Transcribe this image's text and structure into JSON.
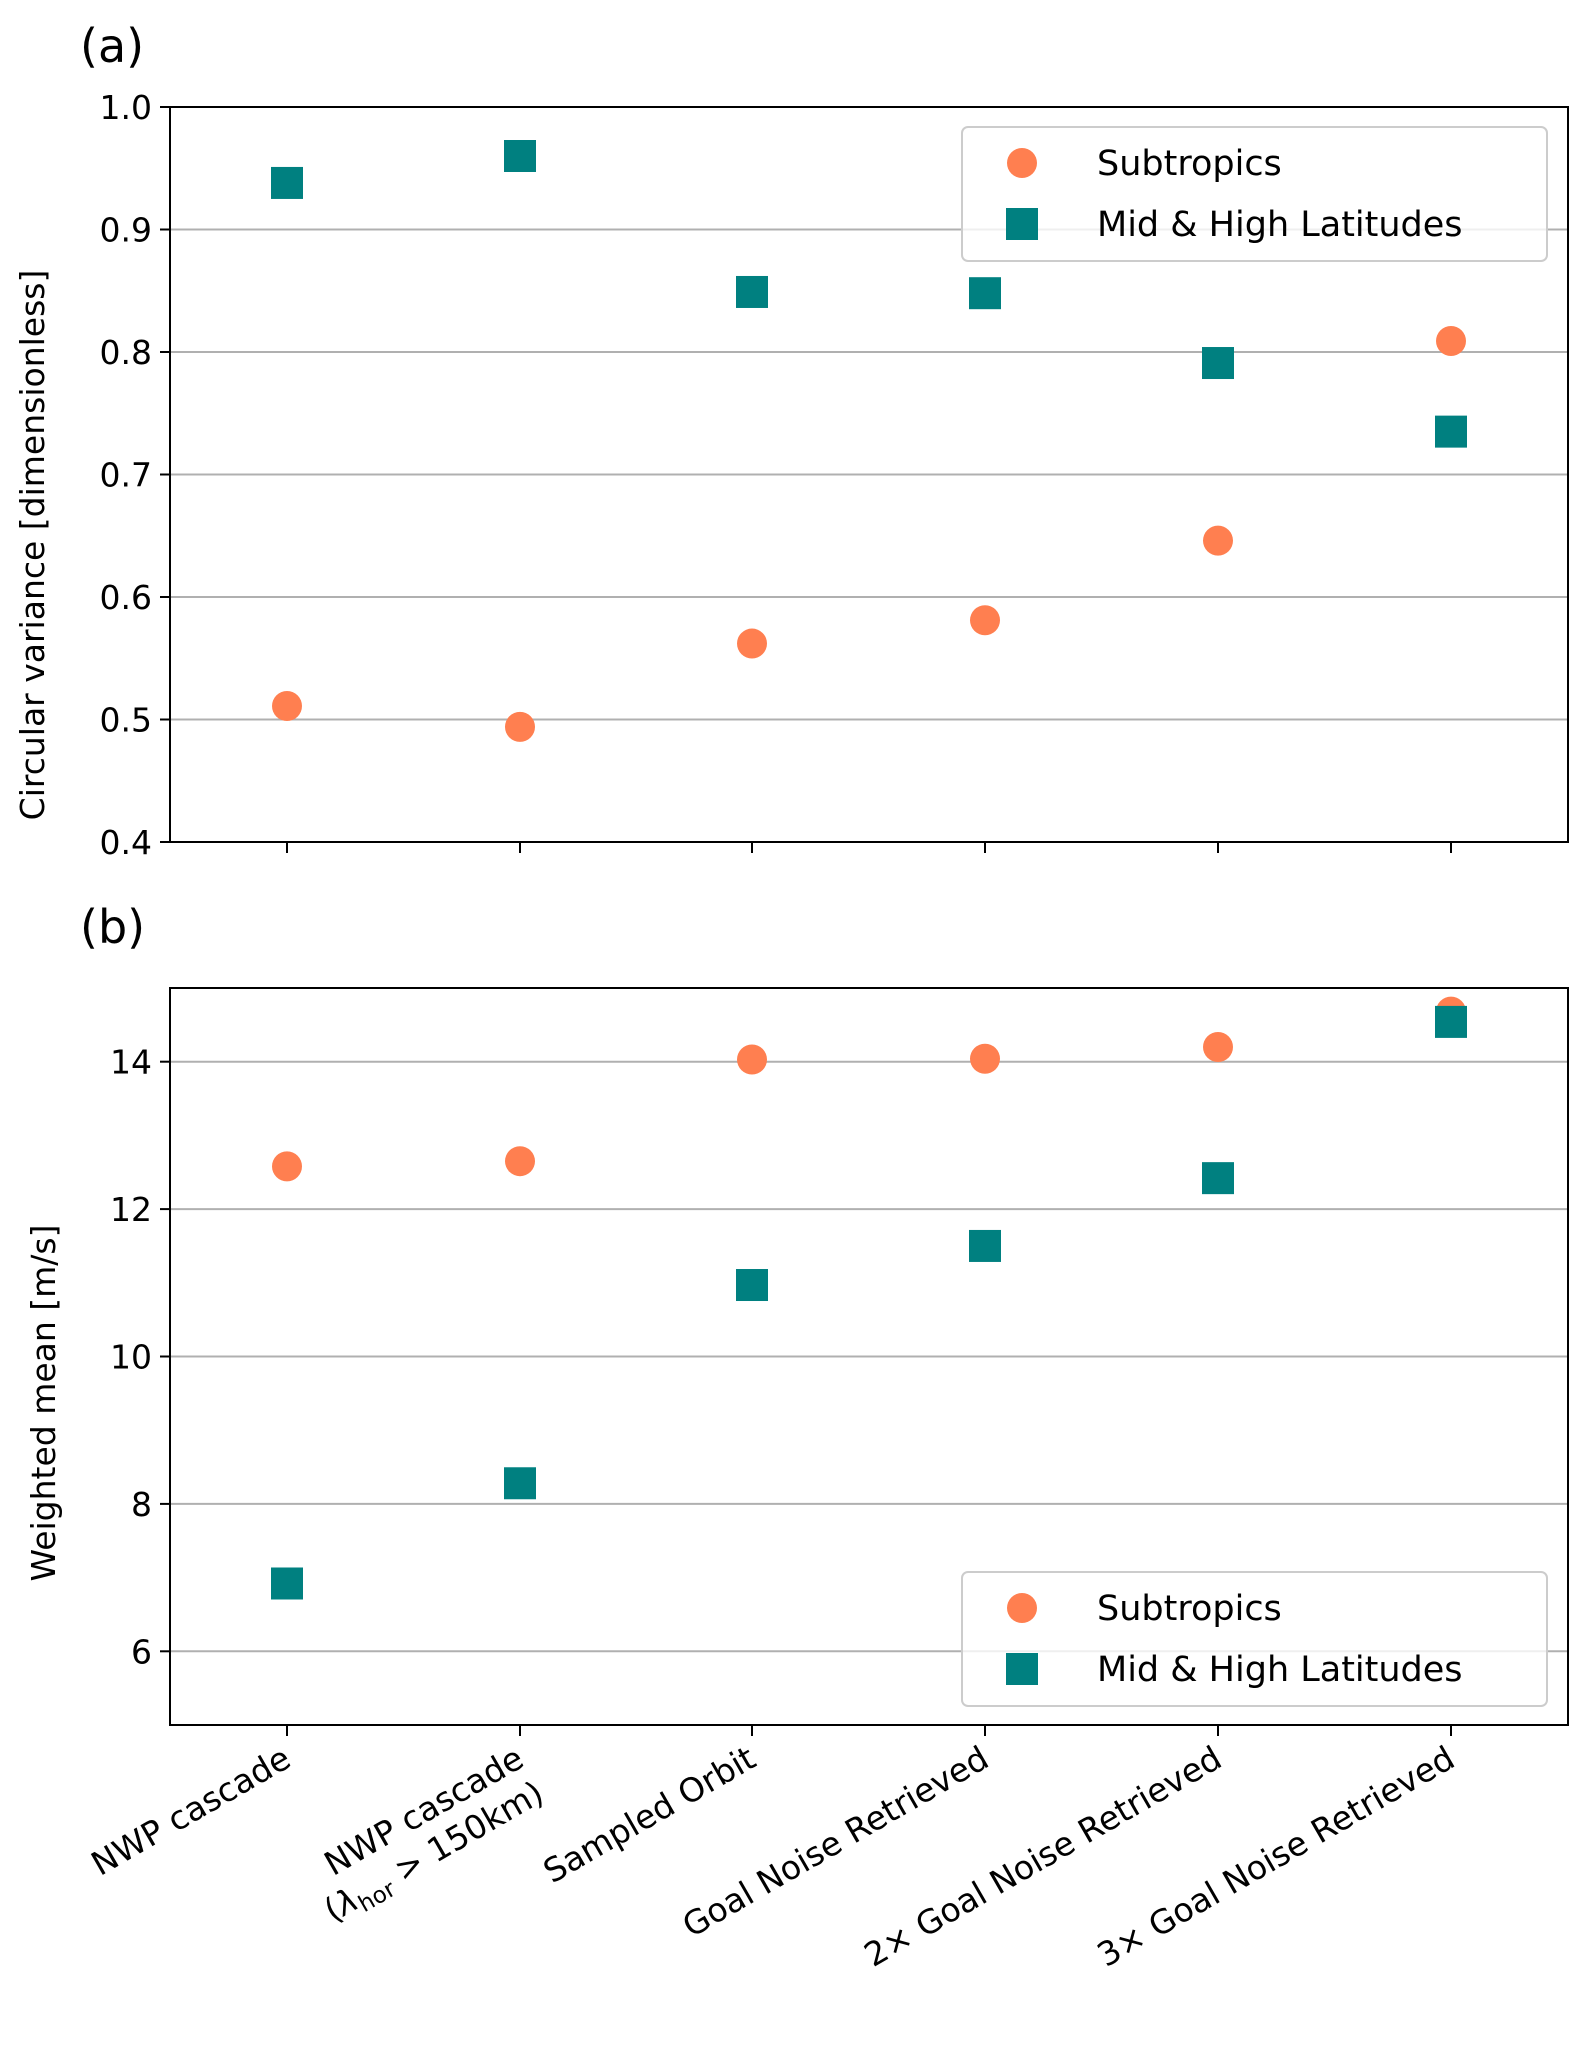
{
  "chart_data": [
    {
      "panel_label": "(a)",
      "type": "scatter",
      "categories": [
        "NWP cascade",
        "NWP cascade (λhor > 150km)",
        "Sampled Orbit",
        "Goal Noise Retrieved",
        "2× Goal Noise Retrieved",
        "3× Goal Noise Retrieved"
      ],
      "series": [
        {
          "name": "Subtropics",
          "marker": "circle",
          "color": "#ff7f50",
          "values": [
            0.511,
            0.494,
            0.562,
            0.581,
            0.646,
            0.809
          ]
        },
        {
          "name": "Mid & High Latitudes",
          "marker": "square",
          "color": "#008080",
          "values": [
            0.938,
            0.96,
            0.849,
            0.848,
            0.791,
            0.735
          ]
        }
      ],
      "ylabel": "Circular variance [dimensionless]",
      "ylim": [
        0.4,
        1.0
      ],
      "yticks": [
        "0.4",
        "0.5",
        "0.6",
        "0.7",
        "0.8",
        "0.9",
        "1.0"
      ],
      "grid": "horizontal",
      "legend": "top-right",
      "show_category_labels": false
    },
    {
      "panel_label": "(b)",
      "type": "scatter",
      "categories": [
        "NWP cascade",
        "NWP cascade (λhor > 150km)",
        "Sampled Orbit",
        "Goal Noise Retrieved",
        "2× Goal Noise Retrieved",
        "3× Goal Noise Retrieved"
      ],
      "series": [
        {
          "name": "Subtropics",
          "marker": "circle",
          "color": "#ff7f50",
          "values": [
            12.58,
            12.65,
            14.03,
            14.04,
            14.2,
            14.68
          ]
        },
        {
          "name": "Mid & High Latitudes",
          "marker": "square",
          "color": "#008080",
          "values": [
            6.92,
            8.28,
            10.97,
            11.5,
            12.42,
            14.54
          ]
        }
      ],
      "ylabel": "Weighted mean [m/s]",
      "ylim": [
        5.0,
        15.0
      ],
      "yticks": [
        "6",
        "8",
        "10",
        "12",
        "14"
      ],
      "grid": "horizontal",
      "legend": "bottom-right",
      "show_category_labels": true
    }
  ],
  "category_labels": [
    {
      "line1": "NWP cascade"
    },
    {
      "line1": "NWP cascade",
      "line2_pre": "(",
      "lambda": "λ",
      "sub": "hor",
      "line2_post": " > 150km)"
    },
    {
      "line1": "Sampled Orbit"
    },
    {
      "line1": "Goal Noise Retrieved"
    },
    {
      "line1": "2× Goal Noise Retrieved"
    },
    {
      "line1": "3× Goal Noise Retrieved"
    }
  ],
  "colors": {
    "subtropics": "#ff7f50",
    "mid_high": "#008080",
    "grid": "#b0b0b0",
    "axis": "#000000"
  }
}
